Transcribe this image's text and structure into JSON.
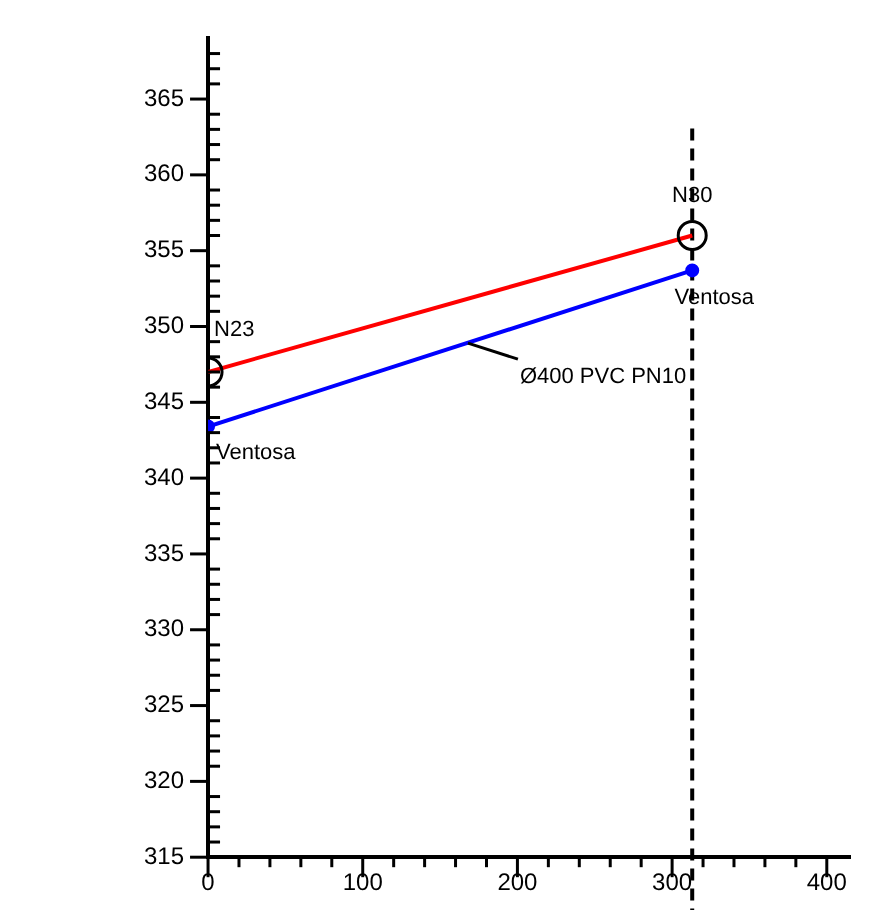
{
  "chart_data": {
    "type": "line",
    "x": [
      0,
      313
    ],
    "series": [
      {
        "color": "#ff0000",
        "values": [
          347.0,
          356.0
        ],
        "marker": "circle"
      },
      {
        "color": "#0000ff",
        "values": [
          343.4,
          353.7
        ],
        "marker": "circle"
      }
    ],
    "xlim": [
      0,
      415
    ],
    "ylim": [
      315,
      369
    ],
    "xticks": [
      0,
      {
        "value": 20,
        "label": null
      },
      {
        "value": 40,
        "label": null
      },
      {
        "value": 60,
        "label": null
      },
      {
        "value": 80,
        "label": null
      },
      100,
      {
        "value": 120,
        "label": null
      },
      {
        "value": 140,
        "label": null
      },
      {
        "value": 160,
        "label": null
      },
      {
        "value": 180,
        "label": null
      },
      200,
      {
        "value": 220,
        "label": null
      },
      {
        "value": 240,
        "label": null
      },
      {
        "value": 260,
        "label": null
      },
      {
        "value": 280,
        "label": null
      },
      300,
      {
        "value": 320,
        "label": null
      },
      {
        "value": 340,
        "label": null
      },
      {
        "value": 360,
        "label": null
      },
      {
        "value": 380,
        "label": null
      },
      400
    ],
    "yticks": [
      315,
      {
        "value": 316,
        "label": null
      },
      {
        "value": 317,
        "label": null
      },
      {
        "value": 318,
        "label": null
      },
      {
        "value": 319,
        "label": null
      },
      320,
      {
        "value": 321,
        "label": null
      },
      {
        "value": 322,
        "label": null
      },
      {
        "value": 323,
        "label": null
      },
      {
        "value": 324,
        "label": null
      },
      325,
      {
        "value": 326,
        "label": null
      },
      {
        "value": 327,
        "label": null
      },
      {
        "value": 328,
        "label": null
      },
      {
        "value": 329,
        "label": null
      },
      330,
      {
        "value": 331,
        "label": null
      },
      {
        "value": 332,
        "label": null
      },
      {
        "value": 333,
        "label": null
      },
      {
        "value": 334,
        "label": null
      },
      335,
      {
        "value": 336,
        "label": null
      },
      {
        "value": 337,
        "label": null
      },
      {
        "value": 338,
        "label": null
      },
      {
        "value": 339,
        "label": null
      },
      340,
      {
        "value": 341,
        "label": null
      },
      {
        "value": 342,
        "label": null
      },
      {
        "value": 343,
        "label": null
      },
      {
        "value": 344,
        "label": null
      },
      345,
      {
        "value": 346,
        "label": null
      },
      {
        "value": 347,
        "label": null
      },
      {
        "value": 348,
        "label": null
      },
      {
        "value": 349,
        "label": null
      },
      350,
      {
        "value": 351,
        "label": null
      },
      {
        "value": 352,
        "label": null
      },
      {
        "value": 353,
        "label": null
      },
      {
        "value": 354,
        "label": null
      },
      355,
      {
        "value": 356,
        "label": null
      },
      {
        "value": 357,
        "label": null
      },
      {
        "value": 358,
        "label": null
      },
      {
        "value": 359,
        "label": null
      },
      360,
      {
        "value": 361,
        "label": null
      },
      {
        "value": 362,
        "label": null
      },
      {
        "value": 363,
        "label": null
      },
      {
        "value": 364,
        "label": null
      },
      365,
      {
        "value": 366,
        "label": null
      },
      {
        "value": 367,
        "label": null
      },
      {
        "value": 368,
        "label": null
      }
    ],
    "ref_lines": [
      {
        "axis": "x",
        "value": 313,
        "color": "#000000",
        "line_style": "dashed"
      }
    ],
    "annotations": [
      {
        "text": "N23",
        "x": 0,
        "y": 347.0
      },
      {
        "text": "Ventosa",
        "x": 0,
        "y": 343.4
      },
      {
        "text": "N30",
        "x": 313,
        "y": 356.0
      },
      {
        "text": "Ventosa",
        "x": 313,
        "y": 353.7
      },
      {
        "text": "Ø400 PVC PN10",
        "x": 168,
        "y": 348.9
      }
    ],
    "grid": false,
    "legend": false,
    "line_style": "solid"
  }
}
